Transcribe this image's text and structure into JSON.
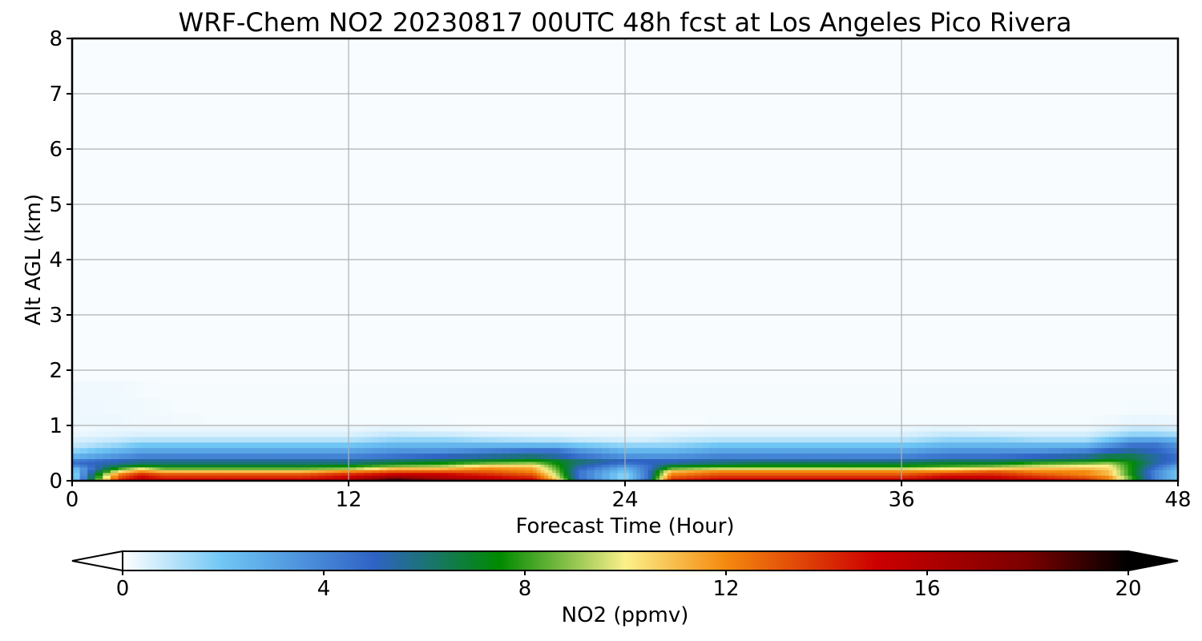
{
  "chart_data": {
    "type": "heatmap",
    "title": "WRF-Chem NO2  20230817 00UTC 48h fcst at Los Angeles Pico Rivera",
    "xlabel": "Forecast Time (Hour)",
    "ylabel": "Alt AGL (km)",
    "xlim": [
      0,
      48
    ],
    "ylim": [
      0,
      8
    ],
    "x_ticks": [
      "0",
      "12",
      "24",
      "36",
      "48"
    ],
    "y_ticks": [
      "0",
      "1",
      "2",
      "3",
      "4",
      "5",
      "6",
      "7",
      "8"
    ],
    "grid": true,
    "colorbar": {
      "label": "NO2  (ppmv)",
      "range": [
        0,
        20
      ],
      "ticks": [
        "0",
        "4",
        "8",
        "12",
        "16",
        "20"
      ],
      "extend": "both",
      "stops": [
        {
          "value": 0,
          "color": "#ffffff"
        },
        {
          "value": 2,
          "color": "#6fc6f5"
        },
        {
          "value": 5,
          "color": "#2f63c5"
        },
        {
          "value": 7.5,
          "color": "#008a00"
        },
        {
          "value": 10,
          "color": "#fbf08a"
        },
        {
          "value": 12,
          "color": "#f4890e"
        },
        {
          "value": 15,
          "color": "#cc0000"
        },
        {
          "value": 18,
          "color": "#7a0000"
        },
        {
          "value": 20,
          "color": "#000000"
        }
      ]
    },
    "x_hours": [
      0,
      2,
      3,
      4,
      6,
      8,
      10,
      12,
      14,
      16,
      18,
      20,
      21,
      22,
      24,
      25,
      26,
      28,
      30,
      32,
      34,
      36,
      38,
      40,
      42,
      44,
      45,
      46,
      47,
      48
    ],
    "layer_tops_km": [
      0.05,
      0.1,
      0.15,
      0.2,
      0.25,
      0.3,
      0.35,
      0.4,
      0.5,
      0.6,
      0.7,
      0.8,
      0.9,
      1.0,
      1.2,
      1.5,
      1.8
    ],
    "no2_values": [
      [
        1,
        14,
        16,
        15,
        15,
        15,
        15,
        16,
        19,
        17,
        16,
        15,
        11,
        5,
        1.5,
        5,
        14,
        15,
        15,
        15,
        15,
        15,
        17,
        16,
        15,
        14,
        12,
        8,
        4,
        2
      ],
      [
        1,
        13,
        15,
        14,
        14,
        14,
        14,
        15,
        17,
        16,
        15,
        14,
        10,
        4.5,
        1.5,
        4.5,
        13,
        14,
        14,
        14,
        14,
        14,
        15,
        15,
        14,
        13,
        12,
        8,
        4,
        2
      ],
      [
        1,
        12,
        14,
        13,
        13,
        13,
        13,
        14,
        15,
        15,
        14,
        13,
        9.5,
        4.5,
        1.5,
        4.5,
        12,
        13,
        13,
        13,
        13,
        13,
        14,
        14,
        13,
        12,
        11,
        7.5,
        4,
        2
      ],
      [
        1.5,
        10,
        12,
        11,
        11,
        11,
        11,
        12,
        13,
        13,
        13,
        12,
        9,
        4.5,
        2,
        4.5,
        11,
        12,
        12,
        12,
        12,
        12,
        12,
        13,
        12,
        12,
        11,
        7.5,
        4,
        2
      ],
      [
        2,
        8,
        10,
        8.5,
        8.5,
        8.5,
        8.5,
        9,
        11,
        11,
        12,
        11.5,
        8.5,
        5,
        2.5,
        4.5,
        8.5,
        9.5,
        9.5,
        9.5,
        9.5,
        9.5,
        10,
        10.5,
        11,
        11,
        10.5,
        7.5,
        4.5,
        2.5
      ],
      [
        3.5,
        6.5,
        7.5,
        7,
        7,
        7,
        7,
        7.5,
        8.5,
        9,
        10.5,
        10.5,
        8,
        5.5,
        3.5,
        4.5,
        7,
        7.5,
        7.5,
        7.5,
        7.5,
        7.5,
        8,
        8.5,
        9.5,
        10,
        10,
        7.5,
        5,
        3
      ],
      [
        4.5,
        5.5,
        6,
        6,
        6,
        6,
        6,
        6,
        7,
        7.5,
        8.5,
        9,
        7.5,
        6,
        4.5,
        5,
        5.5,
        6,
        6.5,
        6.5,
        6.5,
        6.5,
        7,
        7,
        8,
        8.5,
        9,
        7.5,
        5.5,
        4
      ],
      [
        4,
        5,
        5.5,
        5.5,
        5.5,
        5.5,
        5.5,
        5.5,
        6,
        6.5,
        7,
        7.5,
        7,
        6,
        5,
        5,
        5,
        5.5,
        5.5,
        5.5,
        5.5,
        5.5,
        6,
        6,
        6.5,
        7,
        7.5,
        7,
        5.5,
        4.5
      ],
      [
        2.5,
        3.5,
        4,
        4,
        4,
        4,
        4,
        4,
        4.5,
        5,
        5.5,
        6,
        5.5,
        4.5,
        3.5,
        3.5,
        3.5,
        4,
        4,
        4,
        4,
        4,
        4.5,
        4.5,
        5,
        5.5,
        6.5,
        6.5,
        5.5,
        4.5
      ],
      [
        1.5,
        2.5,
        3,
        3,
        3,
        3,
        3,
        3,
        3.5,
        3.5,
        4,
        4.5,
        4.5,
        3.5,
        2.5,
        2.5,
        2.5,
        3,
        3,
        3,
        3,
        3,
        3.5,
        3.5,
        3.5,
        4,
        5,
        5.5,
        5,
        4
      ],
      [
        0.8,
        1.5,
        2,
        2,
        2,
        2,
        2,
        2,
        2.5,
        2.5,
        2.5,
        2.5,
        2.5,
        2,
        1.5,
        1.5,
        1.5,
        2,
        2,
        2,
        2,
        2,
        2.5,
        2.5,
        2.5,
        2.5,
        3.5,
        4.5,
        4.5,
        3.5
      ],
      [
        0.5,
        0.8,
        1,
        1,
        1,
        1,
        1,
        1,
        1.5,
        1.5,
        1.2,
        1,
        1,
        0.8,
        0.6,
        0.6,
        0.8,
        1,
        1,
        1,
        1,
        1,
        1.5,
        1.5,
        1.2,
        1.2,
        2,
        3,
        3,
        2.5
      ],
      [
        0.3,
        0.4,
        0.5,
        0.5,
        0.5,
        0.5,
        0.5,
        0.5,
        0.8,
        0.7,
        0.5,
        0.4,
        0.4,
        0.3,
        0.3,
        0.3,
        0.4,
        0.5,
        0.5,
        0.5,
        0.5,
        0.5,
        0.8,
        0.7,
        0.6,
        0.6,
        1,
        1.5,
        1.5,
        1.2
      ],
      [
        0.2,
        0.3,
        0.3,
        0.3,
        0.3,
        0.3,
        0.3,
        0.3,
        0.4,
        0.3,
        0.2,
        0.2,
        0.2,
        0.2,
        0.2,
        0.2,
        0.2,
        0.3,
        0.3,
        0.3,
        0.3,
        0.3,
        0.4,
        0.3,
        0.3,
        0.3,
        0.5,
        0.8,
        0.8,
        0.6
      ],
      [
        0.25,
        0.25,
        0.2,
        0.2,
        0.15,
        0.15,
        0.15,
        0.15,
        0.15,
        0.15,
        0.12,
        0.12,
        0.12,
        0.12,
        0.12,
        0.12,
        0.12,
        0.15,
        0.15,
        0.15,
        0.15,
        0.15,
        0.15,
        0.15,
        0.15,
        0.15,
        0.2,
        0.3,
        0.3,
        0.25
      ],
      [
        0.25,
        0.22,
        0.2,
        0.15,
        0.12,
        0.12,
        0.12,
        0.12,
        0.12,
        0.12,
        0.12,
        0.12,
        0.12,
        0.12,
        0.12,
        0.12,
        0.12,
        0.12,
        0.12,
        0.12,
        0.12,
        0.12,
        0.12,
        0.12,
        0.12,
        0.12,
        0.12,
        0.15,
        0.15,
        0.12
      ],
      [
        0.22,
        0.2,
        0.15,
        0.12,
        0.12,
        0.12,
        0.12,
        0.12,
        0.12,
        0.12,
        0.12,
        0.12,
        0.12,
        0.12,
        0.12,
        0.12,
        0.12,
        0.12,
        0.12,
        0.12,
        0.12,
        0.12,
        0.12,
        0.12,
        0.12,
        0.12,
        0.12,
        0.12,
        0.12,
        0.12
      ]
    ],
    "background_value": 0.1
  }
}
